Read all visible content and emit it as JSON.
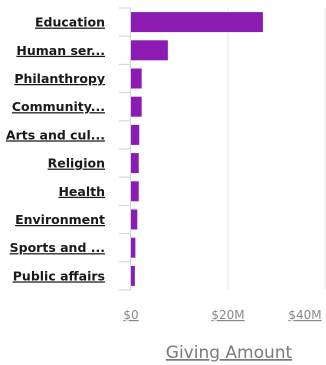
{
  "chart_data": {
    "type": "bar",
    "orientation": "horizontal",
    "categories": [
      "Education",
      "Human ser...",
      "Philanthropy",
      "Community...",
      "Arts and cul...",
      "Religion",
      "Health",
      "Environment",
      "Sports and ...",
      "Public affairs"
    ],
    "values": [
      27.2,
      7.6,
      2.2,
      2.2,
      1.7,
      1.6,
      1.6,
      1.3,
      0.9,
      0.8
    ],
    "xlabel": "Giving Amount",
    "xlim": [
      0,
      40
    ],
    "xticks": [
      0,
      20,
      40
    ],
    "xtick_labels": [
      "$0",
      "$20M",
      "$40M"
    ],
    "grid": "vertical",
    "bar_color": "#8c1bb3"
  }
}
